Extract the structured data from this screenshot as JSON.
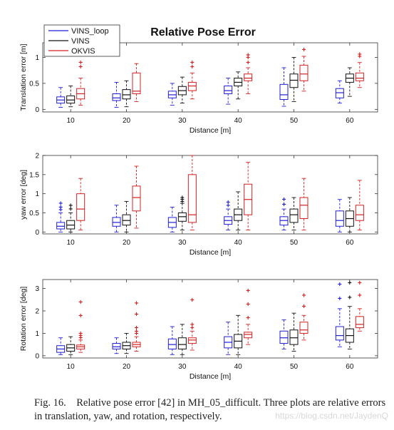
{
  "figure": {
    "title": "Relative Pose Error",
    "legend": {
      "placement": "top-left",
      "entries": [
        {
          "name": "VINS_loop",
          "color": "#1f1fd6"
        },
        {
          "name": "VINS",
          "color": "#111111"
        },
        {
          "name": "OKVIS",
          "color": "#d42020"
        }
      ]
    }
  },
  "caption": {
    "label": "Fig. 16.",
    "text": "Relative pose error [42] in MH_05_difficult. Three plots are relative errors in translation, yaw, and rotation, respectively."
  },
  "watermark": "https://blog.csdn.net/JaydenQ",
  "chart_data": [
    {
      "type": "box",
      "title": "Relative Pose Error",
      "xlabel": "Distance [m]",
      "ylabel": "Translation error [m]",
      "categories": [
        "10",
        "20",
        "30",
        "40",
        "50",
        "60"
      ],
      "ylim": [
        -0.05,
        1.28
      ],
      "yticks": [
        0,
        0.5,
        1
      ],
      "yticklabels": [
        "0",
        "0.5",
        "1"
      ],
      "grid": false,
      "series": [
        {
          "name": "VINS_loop",
          "color": "#1f1fd6",
          "boxes": [
            {
              "lo": 0.04,
              "q1": 0.12,
              "med": 0.18,
              "q3": 0.24,
              "hi": 0.42,
              "out": []
            },
            {
              "lo": 0.04,
              "q1": 0.17,
              "med": 0.22,
              "q3": 0.3,
              "hi": 0.52,
              "out": []
            },
            {
              "lo": 0.08,
              "q1": 0.22,
              "med": 0.28,
              "q3": 0.35,
              "hi": 0.5,
              "out": []
            },
            {
              "lo": 0.1,
              "q1": 0.3,
              "med": 0.36,
              "q3": 0.45,
              "hi": 0.6,
              "out": []
            },
            {
              "lo": 0.06,
              "q1": 0.19,
              "med": 0.28,
              "q3": 0.48,
              "hi": 0.8,
              "out": []
            },
            {
              "lo": 0.12,
              "q1": 0.22,
              "med": 0.32,
              "q3": 0.4,
              "hi": 0.55,
              "out": []
            }
          ]
        },
        {
          "name": "VINS",
          "color": "#111111",
          "boxes": [
            {
              "lo": 0.05,
              "q1": 0.12,
              "med": 0.18,
              "q3": 0.26,
              "hi": 0.45,
              "out": []
            },
            {
              "lo": 0.05,
              "q1": 0.2,
              "med": 0.28,
              "q3": 0.38,
              "hi": 0.55,
              "out": []
            },
            {
              "lo": 0.12,
              "q1": 0.28,
              "med": 0.36,
              "q3": 0.44,
              "hi": 0.62,
              "out": []
            },
            {
              "lo": 0.2,
              "q1": 0.45,
              "med": 0.52,
              "q3": 0.6,
              "hi": 0.72,
              "out": []
            },
            {
              "lo": 0.15,
              "q1": 0.42,
              "med": 0.56,
              "q3": 0.68,
              "hi": 1.0,
              "out": []
            },
            {
              "lo": 0.25,
              "q1": 0.52,
              "med": 0.6,
              "q3": 0.68,
              "hi": 0.8,
              "out": []
            }
          ]
        },
        {
          "name": "OKVIS",
          "color": "#d42020",
          "boxes": [
            {
              "lo": 0.08,
              "q1": 0.2,
              "med": 0.3,
              "q3": 0.4,
              "hi": 0.6,
              "out": [
                0.82,
                0.9
              ]
            },
            {
              "lo": 0.15,
              "q1": 0.3,
              "med": 0.35,
              "q3": 0.7,
              "hi": 0.88,
              "out": []
            },
            {
              "lo": 0.2,
              "q1": 0.36,
              "med": 0.45,
              "q3": 0.52,
              "hi": 0.7,
              "out": [
                0.82,
                0.9
              ]
            },
            {
              "lo": 0.3,
              "q1": 0.55,
              "med": 0.6,
              "q3": 0.68,
              "hi": 0.8,
              "out": [
                0.9,
                1.0,
                1.05
              ]
            },
            {
              "lo": 0.35,
              "q1": 0.55,
              "med": 0.68,
              "q3": 0.85,
              "hi": 1.02,
              "out": [
                1.15
              ]
            },
            {
              "lo": 0.42,
              "q1": 0.55,
              "med": 0.6,
              "q3": 0.7,
              "hi": 0.9,
              "out": [
                1.02,
                1.06
              ]
            }
          ]
        }
      ]
    },
    {
      "type": "box",
      "title": "",
      "xlabel": "Distance [m]",
      "ylabel": "yaw error [deg]",
      "categories": [
        "10",
        "20",
        "30",
        "40",
        "50",
        "60"
      ],
      "ylim": [
        -0.05,
        2.0
      ],
      "yticks": [
        0,
        0.5,
        1,
        1.5,
        2
      ],
      "yticklabels": [
        "0",
        "0.5",
        "1",
        "1.5",
        "2"
      ],
      "grid": false,
      "series": [
        {
          "name": "VINS_loop",
          "color": "#1f1fd6",
          "boxes": [
            {
              "lo": 0.0,
              "q1": 0.08,
              "med": 0.15,
              "q3": 0.25,
              "hi": 0.5,
              "out": [
                0.58,
                0.65,
                0.75
              ]
            },
            {
              "lo": 0.0,
              "q1": 0.15,
              "med": 0.25,
              "q3": 0.38,
              "hi": 0.7,
              "out": []
            },
            {
              "lo": 0.0,
              "q1": 0.12,
              "med": 0.25,
              "q3": 0.38,
              "hi": 0.65,
              "out": []
            },
            {
              "lo": 0.05,
              "q1": 0.2,
              "med": 0.3,
              "q3": 0.4,
              "hi": 0.6,
              "out": [
                0.7,
                0.78
              ]
            },
            {
              "lo": 0.05,
              "q1": 0.18,
              "med": 0.3,
              "q3": 0.4,
              "hi": 0.6,
              "out": [
                0.72,
                0.85
              ]
            },
            {
              "lo": 0.0,
              "q1": 0.15,
              "med": 0.3,
              "q3": 0.55,
              "hi": 0.85,
              "out": []
            }
          ]
        },
        {
          "name": "VINS",
          "color": "#111111",
          "boxes": [
            {
              "lo": 0.0,
              "q1": 0.08,
              "med": 0.18,
              "q3": 0.3,
              "hi": 0.5,
              "out": [
                0.6,
                0.7
              ]
            },
            {
              "lo": 0.0,
              "q1": 0.18,
              "med": 0.3,
              "q3": 0.45,
              "hi": 0.8,
              "out": []
            },
            {
              "lo": 0.05,
              "q1": 0.28,
              "med": 0.4,
              "q3": 0.5,
              "hi": 0.75,
              "out": [
                0.8,
                0.85,
                0.9
              ]
            },
            {
              "lo": 0.05,
              "q1": 0.3,
              "med": 0.45,
              "q3": 0.6,
              "hi": 1.05,
              "out": []
            },
            {
              "lo": 0.05,
              "q1": 0.25,
              "med": 0.45,
              "q3": 0.6,
              "hi": 0.9,
              "out": []
            },
            {
              "lo": 0.0,
              "q1": 0.15,
              "med": 0.35,
              "q3": 0.55,
              "hi": 0.9,
              "out": []
            }
          ]
        },
        {
          "name": "OKVIS",
          "color": "#d42020",
          "boxes": [
            {
              "lo": 0.05,
              "q1": 0.3,
              "med": 0.6,
              "q3": 1.0,
              "hi": 1.4,
              "out": []
            },
            {
              "lo": 0.1,
              "q1": 0.55,
              "med": 0.9,
              "q3": 1.2,
              "hi": 1.72,
              "out": []
            },
            {
              "lo": 0.05,
              "q1": 0.25,
              "med": 0.45,
              "q3": 1.5,
              "hi": 2.0,
              "out": []
            },
            {
              "lo": 0.05,
              "q1": 0.45,
              "med": 0.85,
              "q3": 1.25,
              "hi": 1.82,
              "out": []
            },
            {
              "lo": 0.05,
              "q1": 0.35,
              "med": 0.7,
              "q3": 0.9,
              "hi": 1.4,
              "out": []
            },
            {
              "lo": 0.05,
              "q1": 0.3,
              "med": 0.45,
              "q3": 0.7,
              "hi": 1.35,
              "out": []
            }
          ]
        }
      ]
    },
    {
      "type": "box",
      "title": "",
      "xlabel": "Distance [m]",
      "ylabel": "Rotation error [deg]",
      "categories": [
        "10",
        "20",
        "30",
        "40",
        "50",
        "60"
      ],
      "ylim": [
        -0.1,
        3.4
      ],
      "yticks": [
        0,
        1,
        2,
        3
      ],
      "yticklabels": [
        "0",
        "1",
        "2",
        "3"
      ],
      "grid": false,
      "series": [
        {
          "name": "VINS_loop",
          "color": "#1f1fd6",
          "boxes": [
            {
              "lo": 0.05,
              "q1": 0.15,
              "med": 0.3,
              "q3": 0.45,
              "hi": 0.8,
              "out": []
            },
            {
              "lo": 0.1,
              "q1": 0.3,
              "med": 0.4,
              "q3": 0.55,
              "hi": 0.8,
              "out": []
            },
            {
              "lo": 0.05,
              "q1": 0.3,
              "med": 0.5,
              "q3": 0.75,
              "hi": 1.3,
              "out": []
            },
            {
              "lo": 0.05,
              "q1": 0.35,
              "med": 0.6,
              "q3": 0.85,
              "hi": 1.5,
              "out": []
            },
            {
              "lo": 0.3,
              "q1": 0.55,
              "med": 0.8,
              "q3": 1.1,
              "hi": 1.6,
              "out": []
            },
            {
              "lo": 0.4,
              "q1": 0.7,
              "med": 0.9,
              "q3": 1.3,
              "hi": 2.1,
              "out": [
                2.55,
                3.2
              ]
            }
          ]
        },
        {
          "name": "VINS",
          "color": "#111111",
          "boxes": [
            {
              "lo": 0.05,
              "q1": 0.2,
              "med": 0.35,
              "q3": 0.5,
              "hi": 0.85,
              "out": []
            },
            {
              "lo": 0.1,
              "q1": 0.3,
              "med": 0.45,
              "q3": 0.6,
              "hi": 1.0,
              "out": []
            },
            {
              "lo": 0.05,
              "q1": 0.3,
              "med": 0.5,
              "q3": 0.8,
              "hi": 1.4,
              "out": []
            },
            {
              "lo": 0.05,
              "q1": 0.35,
              "med": 0.65,
              "q3": 0.95,
              "hi": 1.8,
              "out": []
            },
            {
              "lo": 0.2,
              "q1": 0.5,
              "med": 0.8,
              "q3": 1.15,
              "hi": 1.9,
              "out": []
            },
            {
              "lo": 0.3,
              "q1": 0.6,
              "med": 0.9,
              "q3": 1.2,
              "hi": 2.2,
              "out": [
                2.6,
                3.25
              ]
            }
          ]
        },
        {
          "name": "OKVIS",
          "color": "#d42020",
          "boxes": [
            {
              "lo": 0.15,
              "q1": 0.3,
              "med": 0.4,
              "q3": 0.48,
              "hi": 0.7,
              "out": [
                0.8,
                0.9,
                1.0,
                1.8,
                2.4
              ]
            },
            {
              "lo": 0.2,
              "q1": 0.4,
              "med": 0.5,
              "q3": 0.6,
              "hi": 0.85,
              "out": [
                1.0,
                1.1,
                1.25,
                1.85,
                2.35
              ]
            },
            {
              "lo": 0.25,
              "q1": 0.55,
              "med": 0.7,
              "q3": 0.8,
              "hi": 1.1,
              "out": [
                1.25,
                1.4,
                2.5
              ]
            },
            {
              "lo": 0.5,
              "q1": 0.8,
              "med": 0.95,
              "q3": 1.05,
              "hi": 1.4,
              "out": [
                1.7,
                2.3,
                2.9
              ]
            },
            {
              "lo": 0.7,
              "q1": 1.0,
              "med": 1.15,
              "q3": 1.5,
              "hi": 1.8,
              "out": [
                2.2,
                2.7
              ]
            },
            {
              "lo": 1.1,
              "q1": 1.25,
              "med": 1.4,
              "q3": 1.75,
              "hi": 2.1,
              "out": [
                2.7,
                3.25
              ]
            }
          ]
        }
      ]
    }
  ]
}
